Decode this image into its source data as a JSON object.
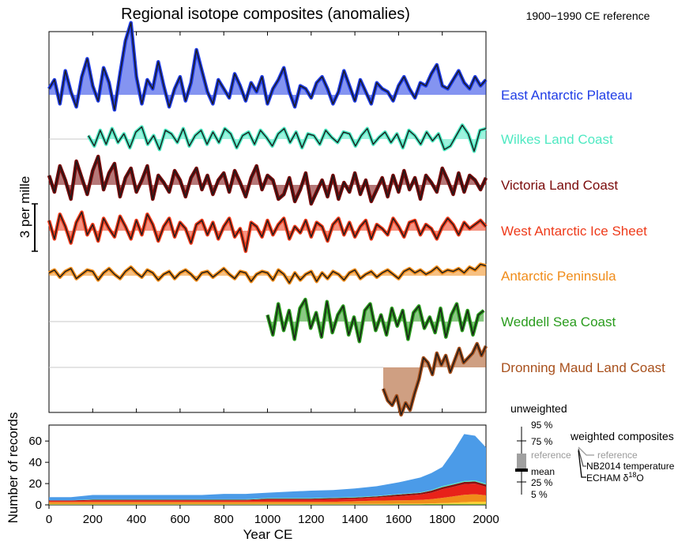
{
  "chart_data": [
    {
      "type": "line",
      "title": "Regional isotope composites (anomalies)",
      "reference_note": "1900−1990  CE reference",
      "scale_label": "3 per mille",
      "x_range": [
        0,
        2000
      ],
      "series": [
        {
          "name": "East Antarctic Plateau",
          "color": "#1f3ce6",
          "start": 0,
          "end": 2000,
          "values": [
            0.2,
            0.5,
            -0.3,
            0.8,
            0.1,
            -0.4,
            0.6,
            1.2,
            0.3,
            -0.2,
            0.9,
            0.4,
            -0.5,
            0.7,
            1.8,
            2.4,
            0.6,
            -0.3,
            0.5,
            0.2,
            1.1,
            0.3,
            -0.4,
            0.2,
            0.6,
            -0.2,
            0.4,
            1.5,
            0.8,
            0.1,
            -0.3,
            0.5,
            0.2,
            -0.1,
            0.7,
            0.3,
            -0.2,
            0.4,
            0.1,
            0.6,
            -0.3,
            0.2,
            0.5,
            0.9,
            0.1,
            -0.4,
            0.3,
            0.2,
            -0.1,
            0.4,
            0.6,
            0.2,
            -0.3,
            0.1,
            0.8,
            0.3,
            -0.2,
            0.5,
            0.1,
            -0.3,
            0.4,
            0.2,
            0.1,
            -0.2,
            0.3,
            0.6,
            0.2,
            -0.1,
            0.4,
            0.3,
            0.7,
            1.0,
            0.3,
            0.2,
            0.5,
            0.8,
            0.4,
            0.2,
            0.6,
            0.3,
            0.5
          ]
        },
        {
          "name": "Wilkes Land Coast",
          "color": "#4fe9c2",
          "start": 180,
          "end": 2000,
          "values": [
            0.2,
            -0.4,
            0.5,
            -0.3,
            0.6,
            -0.2,
            0.3,
            -0.5,
            0.4,
            0.7,
            -0.3,
            0.2,
            -0.6,
            0.5,
            0.3,
            -0.2,
            0.6,
            -0.4,
            0.2,
            0.5,
            -0.3,
            0.4,
            -0.2,
            0.6,
            0.3,
            -0.5,
            0.2,
            0.4,
            -0.3,
            0.5,
            0.1,
            -0.4,
            0.3,
            0.6,
            -0.2,
            0.4,
            -0.5,
            0.3,
            0.2,
            -0.3,
            0.5,
            0.1,
            -0.2,
            0.4,
            0.3,
            -0.4,
            0.2,
            0.6,
            -0.3,
            0.1,
            0.4,
            -0.2,
            0.3,
            -0.5,
            0.5,
            0.2,
            -0.3,
            0.4,
            -0.1,
            0.3,
            -0.6,
            -0.4,
            0.2,
            0.8,
            0.3,
            -0.7,
            0.5,
            0.6
          ]
        },
        {
          "name": "Victoria Land Coast",
          "color": "#7a0a0a",
          "start": 0,
          "end": 2000,
          "values": [
            0.4,
            -0.3,
            0.8,
            0.2,
            -0.6,
            1.0,
            0.3,
            -0.4,
            0.6,
            1.2,
            -0.2,
            0.5,
            0.9,
            -0.5,
            0.3,
            0.7,
            -0.3,
            0.2,
            0.8,
            -0.6,
            0.4,
            0.1,
            -0.3,
            0.6,
            0.2,
            -0.5,
            0.3,
            0.7,
            -0.2,
            0.4,
            -0.4,
            0.2,
            0.5,
            -0.3,
            0.6,
            0.1,
            -0.5,
            0.3,
            0.8,
            -0.2,
            0.4,
            0.2,
            -0.6,
            -0.4,
            0.3,
            -0.7,
            -0.2,
            0.5,
            -0.8,
            -0.3,
            0.2,
            -0.5,
            0.4,
            -0.6,
            0.1,
            -0.3,
            0.5,
            -0.4,
            0.2,
            -0.7,
            -0.2,
            0.3,
            -0.5,
            0.4,
            -0.3,
            0.6,
            -0.2,
            0.3,
            -0.6,
            0.4,
            0.1,
            -0.3,
            0.7,
            0.2,
            -0.4,
            0.5,
            -0.3,
            0.4,
            0.2,
            -0.2,
            0.3
          ]
        },
        {
          "name": "West Antarctic Ice Sheet",
          "color": "#ee3a1a",
          "start": 0,
          "end": 2000,
          "values": [
            0.5,
            -0.4,
            0.8,
            0.2,
            -0.6,
            0.4,
            0.9,
            -0.2,
            0.3,
            -0.5,
            0.6,
            0.1,
            -0.3,
            0.7,
            0.2,
            -0.4,
            0.5,
            -0.2,
            0.8,
            0.3,
            -0.5,
            0.2,
            0.6,
            -0.3,
            0.4,
            0.1,
            -0.6,
            0.3,
            0.5,
            -0.2,
            0.4,
            -0.4,
            0.2,
            0.6,
            -0.3,
            0.1,
            -1.0,
            0.4,
            0.2,
            -0.3,
            0.5,
            -0.2,
            0.3,
            0.6,
            -0.4,
            0.2,
            -0.1,
            0.5,
            -0.3,
            0.4,
            0.2,
            -0.5,
            0.3,
            0.6,
            -0.2,
            0.4,
            -0.3,
            0.2,
            0.5,
            -0.4,
            0.3,
            0.1,
            -0.2,
            0.6,
            0.2,
            -0.3,
            0.4,
            0.5,
            -0.2,
            0.3,
            0.1,
            -0.4,
            0.2,
            0.6,
            0.3,
            -0.2,
            0.4,
            0.1,
            0.3,
            0.5,
            0.2
          ]
        },
        {
          "name": "Antarctic Peninsula",
          "color": "#f08c1a",
          "start": 0,
          "end": 2000,
          "values": [
            0.2,
            0.4,
            -0.1,
            0.3,
            0.5,
            -0.2,
            0.1,
            0.4,
            0.3,
            -0.3,
            0.2,
            0.5,
            0.1,
            -0.2,
            0.3,
            0.6,
            0.2,
            -0.1,
            0.4,
            0.2,
            -0.3,
            0.1,
            0.3,
            -0.2,
            0.2,
            0.4,
            0.1,
            -0.3,
            0.2,
            0.3,
            -0.1,
            0.2,
            0.5,
            0.1,
            -0.2,
            0.3,
            0.2,
            -0.4,
            0.1,
            0.3,
            0.2,
            -0.3,
            0.4,
            0.1,
            -0.5,
            0.2,
            -0.3,
            0.1,
            0.3,
            -0.4,
            0.2,
            -0.2,
            0.3,
            0.1,
            -0.3,
            0.2,
            0.4,
            -0.2,
            0.1,
            0.3,
            -0.1,
            0.2,
            0.4,
            0.1,
            -0.2,
            0.3,
            0.5,
            0.2,
            0.4,
            0.1,
            0.3,
            0.6,
            0.2,
            0.4,
            0.3,
            0.5,
            0.2,
            0.6,
            0.4,
            0.8,
            0.7
          ]
        },
        {
          "name": "Weddell Sea Coast",
          "color": "#2a9c1e",
          "start": 1000,
          "end": 1990,
          "values": [
            0.3,
            -0.6,
            0.8,
            -0.4,
            0.5,
            -0.8,
            0.6,
            1.0,
            -0.3,
            0.4,
            -0.7,
            0.9,
            -0.5,
            0.3,
            0.7,
            -0.6,
            0.2,
            -0.9,
            0.5,
            0.8,
            -0.4,
            0.3,
            -0.6,
            0.6,
            -0.2,
            0.5,
            -0.8,
            0.4,
            0.7,
            -0.3,
            0.2,
            -0.5,
            0.6,
            -0.7,
            0.3,
            0.8,
            -0.4,
            0.5,
            -0.6,
            0.3,
            0.5
          ]
        },
        {
          "name": "Dronning Maud Land Coast",
          "color": "#a8501c",
          "start": 1530,
          "end": 2000,
          "values": [
            -0.9,
            -1.4,
            -1.6,
            -1.2,
            -2.0,
            -1.5,
            -1.8,
            -1.1,
            -0.5,
            0.4,
            0.2,
            -0.3,
            0.6,
            0.1,
            0.5,
            -0.2,
            0.3,
            0.8,
            0.2,
            0.4,
            0.6,
            1.0,
            0.5,
            0.9
          ]
        }
      ],
      "legend": [
        "East Antarctic Plateau",
        "Wilkes Land Coast",
        "Victoria Land Coast",
        "West Antarctic Ice Sheet",
        "Antarctic Peninsula",
        "Weddell Sea Coast",
        "Dronning Maud Land Coast"
      ]
    },
    {
      "type": "area",
      "xlabel": "Year CE",
      "ylabel": "Number of records",
      "xlim": [
        0,
        2000
      ],
      "ylim": [
        0,
        75
      ],
      "x_ticks": [
        0,
        200,
        400,
        600,
        800,
        1000,
        1200,
        1400,
        1600,
        1800,
        2000
      ],
      "y_ticks": [
        0,
        20,
        40,
        60
      ],
      "x": [
        0,
        100,
        200,
        300,
        400,
        500,
        600,
        700,
        800,
        900,
        1000,
        1100,
        1200,
        1300,
        1400,
        1500,
        1600,
        1700,
        1750,
        1800,
        1850,
        1900,
        1950,
        2000
      ],
      "series": [
        {
          "color": "#6aa32a",
          "values": [
            0.5,
            0.5,
            0.5,
            0.5,
            0.5,
            0.5,
            0.5,
            0.5,
            0.5,
            0.5,
            0.6,
            0.6,
            0.6,
            0.6,
            0.6,
            0.6,
            0.7,
            0.7,
            0.8,
            0.8,
            1,
            1,
            1,
            1
          ]
        },
        {
          "color": "#ffcf30",
          "values": [
            0.3,
            0.3,
            0.3,
            0.3,
            0.3,
            0.3,
            0.3,
            0.3,
            0.3,
            0.3,
            0.3,
            0.3,
            0.3,
            0.3,
            0.3,
            0.4,
            0.5,
            0.5,
            0.6,
            0.8,
            1,
            1.5,
            2,
            2
          ]
        },
        {
          "color": "#f08c1a",
          "values": [
            2,
            2,
            2,
            2,
            2,
            2,
            2,
            2,
            2,
            2,
            2,
            2,
            2,
            2,
            2.5,
            3,
            3,
            3.5,
            4,
            5,
            6,
            7,
            7,
            6
          ]
        },
        {
          "color": "#e8221a",
          "values": [
            1,
            1,
            1.5,
            1.5,
            1.5,
            1.5,
            1.5,
            1.5,
            1.5,
            1.5,
            2,
            2,
            2,
            2.5,
            2.5,
            3,
            4,
            5,
            6,
            8,
            9,
            10,
            10,
            8
          ]
        },
        {
          "color": "#8a1010",
          "values": [
            0.5,
            0.5,
            0.5,
            0.5,
            0.5,
            0.5,
            0.5,
            0.5,
            0.5,
            0.5,
            1,
            1,
            1,
            1,
            1,
            1,
            1.5,
            1.5,
            2,
            2,
            2,
            2,
            2,
            2
          ]
        },
        {
          "color": "#4fe9c2",
          "values": [
            0,
            0,
            0.5,
            0.5,
            0.5,
            0.5,
            0.5,
            0.5,
            0.5,
            0.5,
            0.5,
            0.5,
            0.5,
            0.5,
            0.5,
            0.5,
            0.5,
            0.5,
            0.5,
            1,
            1,
            1,
            1,
            1
          ]
        },
        {
          "color": "#4b9be8",
          "values": [
            3,
            3,
            4,
            4,
            4,
            4,
            4,
            4,
            5,
            5,
            5,
            6,
            7,
            7,
            8,
            9,
            11,
            14,
            16,
            18,
            30,
            44,
            42,
            34
          ]
        }
      ]
    }
  ],
  "legend_box": {
    "heading": "unweighted",
    "q95": "95 %",
    "q75": "75 %",
    "reference": "reference",
    "mean": "mean",
    "q25": "25 %",
    "q5": "5 %",
    "weighted_heading": "weighted composites",
    "weighted_reference": "reference",
    "nb2014": "NB2014 temperature",
    "echam": "ECHAM δ",
    "echam_sup": "18",
    "echam_tail": "O"
  }
}
